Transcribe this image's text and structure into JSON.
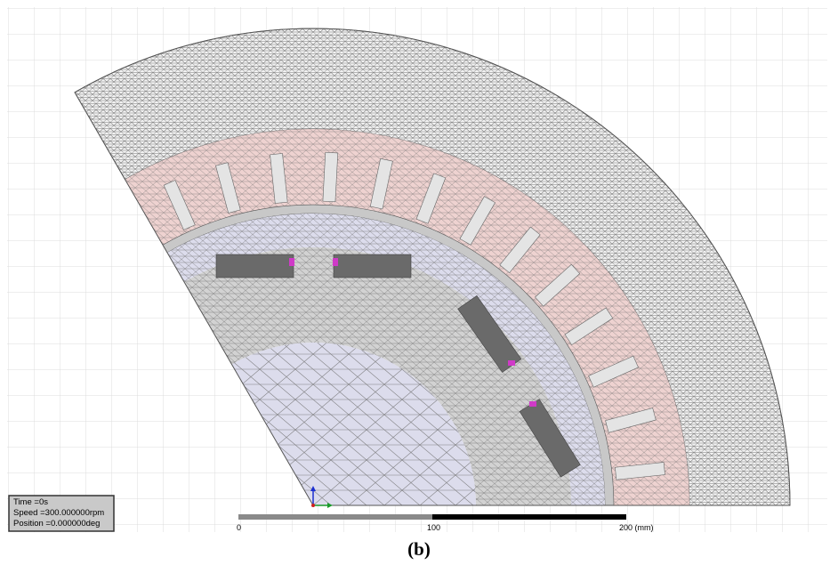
{
  "info_box": {
    "time": "Time =0s",
    "speed": "Speed =300.000000rpm",
    "position": "Position =0.000000deg"
  },
  "scale_bar": {
    "labels": [
      "0",
      "100",
      "200 (mm)"
    ]
  },
  "caption": "(b)"
}
